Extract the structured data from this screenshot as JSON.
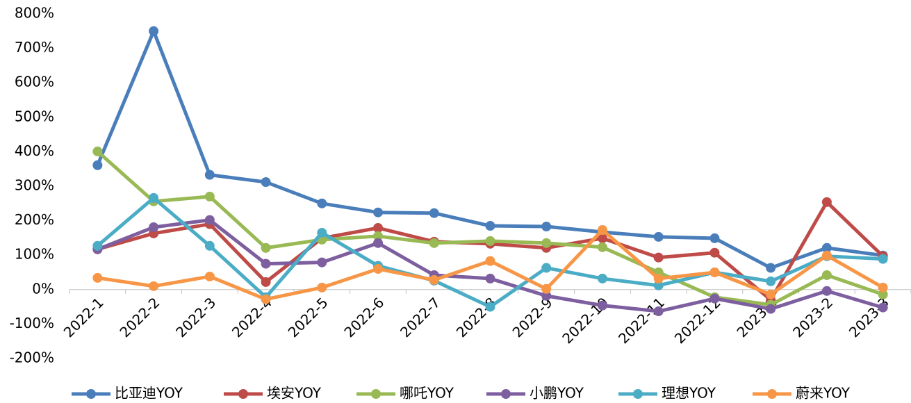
{
  "chart_data": {
    "type": "line",
    "categories": [
      "2022-1",
      "2022-2",
      "2022-3",
      "2022-4",
      "2022-5",
      "2022-6",
      "2022-7",
      "2022-8",
      "2022-9",
      "2022-10",
      "2022-11",
      "2022-12",
      "2023-1",
      "2023-2",
      "2023-3"
    ],
    "series": [
      {
        "name": "比亚迪YOY",
        "color": "#4a7ebb",
        "values": [
          361,
          750,
          333,
          312,
          250,
          224,
          222,
          185,
          183,
          167,
          153,
          149,
          63,
          121,
          99
        ]
      },
      {
        "name": "埃安YOY",
        "color": "#be4b48",
        "values": [
          117,
          163,
          190,
          22,
          149,
          179,
          139,
          133,
          121,
          149,
          93,
          107,
          -30,
          254,
          97
        ]
      },
      {
        "name": "哪吒YOY",
        "color": "#98b954",
        "values": [
          401,
          256,
          270,
          121,
          145,
          155,
          135,
          141,
          135,
          123,
          50,
          -22,
          -44,
          42,
          -14
        ]
      },
      {
        "name": "小鹏YOY",
        "color": "#7d5fa0",
        "values": [
          117,
          181,
          202,
          75,
          79,
          135,
          42,
          32,
          -18,
          -46,
          -63,
          -26,
          -56,
          -4,
          -52
        ]
      },
      {
        "name": "理想YOY",
        "color": "#4bacc6",
        "values": [
          127,
          266,
          127,
          -22,
          165,
          69,
          26,
          -50,
          63,
          32,
          12,
          50,
          24,
          97,
          89
        ]
      },
      {
        "name": "蔚来YOY",
        "color": "#f79646",
        "values": [
          34,
          10,
          38,
          -28,
          6,
          60,
          28,
          83,
          2,
          173,
          32,
          50,
          -14,
          99,
          6
        ]
      }
    ],
    "ylim": [
      -200,
      800
    ],
    "yticks": [
      {
        "value": -200,
        "label": "-200%"
      },
      {
        "value": -100,
        "label": "-100%"
      },
      {
        "value": 0,
        "label": "0%"
      },
      {
        "value": 100,
        "label": "100%"
      },
      {
        "value": 200,
        "label": "200%"
      },
      {
        "value": 300,
        "label": "300%"
      },
      {
        "value": 400,
        "label": "400%"
      },
      {
        "value": 500,
        "label": "500%"
      },
      {
        "value": 600,
        "label": "600%"
      },
      {
        "value": 700,
        "label": "700%"
      },
      {
        "value": 800,
        "label": "800%"
      }
    ],
    "grid": false,
    "legend": "bottom"
  }
}
